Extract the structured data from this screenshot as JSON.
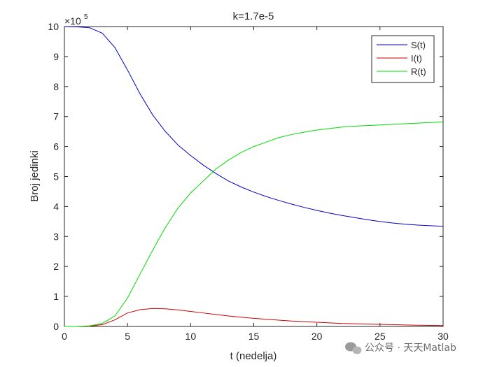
{
  "chart_data": {
    "type": "line",
    "title": "k=1.7e-5",
    "xlabel": "t (nedelja)",
    "ylabel": "Broj jedinki",
    "y_exponent_label": "×10",
    "y_exponent_power": "5",
    "xlim": [
      0,
      30
    ],
    "ylim": [
      0,
      10
    ],
    "xticks": [
      "0",
      "5",
      "10",
      "15",
      "20",
      "25",
      "30"
    ],
    "yticks": [
      "0",
      "1",
      "2",
      "3",
      "4",
      "5",
      "6",
      "7",
      "8",
      "9",
      "10"
    ],
    "legend_position": "top-right",
    "x": [
      0,
      1,
      2,
      3,
      4,
      5,
      6,
      7,
      8,
      9,
      10,
      11,
      12,
      13,
      14,
      15,
      16,
      17,
      18,
      19,
      20,
      21,
      22,
      23,
      24,
      25,
      26,
      27,
      28,
      29,
      30
    ],
    "series": [
      {
        "name": "S(t)",
        "color": "#0000cc",
        "values": [
          10.0,
          9.99,
          9.96,
          9.78,
          9.3,
          8.55,
          7.75,
          7.05,
          6.5,
          6.05,
          5.7,
          5.38,
          5.1,
          4.85,
          4.65,
          4.48,
          4.33,
          4.2,
          4.08,
          3.97,
          3.87,
          3.78,
          3.7,
          3.63,
          3.56,
          3.5,
          3.45,
          3.41,
          3.38,
          3.36,
          3.34
        ]
      },
      {
        "name": "I(t)",
        "color": "#cc0000",
        "values": [
          0.0,
          0.0,
          0.01,
          0.06,
          0.22,
          0.45,
          0.56,
          0.6,
          0.59,
          0.55,
          0.5,
          0.45,
          0.4,
          0.35,
          0.31,
          0.27,
          0.24,
          0.21,
          0.18,
          0.16,
          0.14,
          0.12,
          0.1,
          0.09,
          0.08,
          0.07,
          0.06,
          0.05,
          0.04,
          0.035,
          0.03
        ]
      },
      {
        "name": "R(t)",
        "color": "#00dd00",
        "values": [
          0.0,
          0.0,
          0.02,
          0.1,
          0.35,
          0.95,
          1.75,
          2.55,
          3.3,
          3.95,
          4.45,
          4.85,
          5.25,
          5.55,
          5.8,
          6.0,
          6.15,
          6.3,
          6.4,
          6.48,
          6.55,
          6.6,
          6.65,
          6.68,
          6.7,
          6.72,
          6.74,
          6.76,
          6.78,
          6.8,
          6.82
        ]
      }
    ]
  },
  "watermark": {
    "icon": "wechat-icon",
    "text": "公众号 · 天天Matlab"
  }
}
